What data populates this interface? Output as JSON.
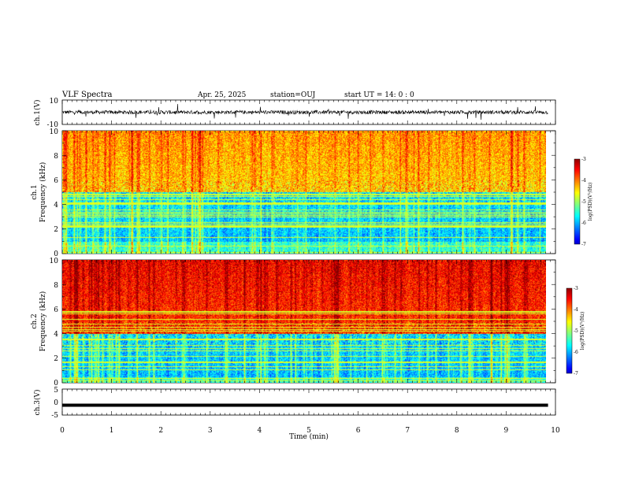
{
  "header": {
    "title": "VLF Spectra",
    "date": "Apr. 25, 2025",
    "station": "station=OUJ",
    "start": "start  UT =   14: 0  : 0"
  },
  "chart_data": [
    {
      "type": "line",
      "name": "ch1-waveform",
      "ylabel": "ch.1(V)",
      "ylim": [
        -10,
        10
      ],
      "yticks": [
        "10",
        "-10"
      ],
      "baseline": 0,
      "color": "#000000"
    },
    {
      "type": "heatmap",
      "name": "ch1-spectrogram",
      "ylabel_top": "ch.1",
      "ylabel": "Frequency (kHz)",
      "ylim": [
        0,
        10
      ],
      "yticks": [
        "0",
        "2",
        "4",
        "6",
        "8",
        "10"
      ],
      "colorbar": {
        "range": [
          -7,
          -3
        ],
        "ticks": [
          "-3",
          "-4",
          "-5",
          "-6",
          "-7"
        ],
        "label": "log(PSD)(V²/Hz)"
      },
      "profile": {
        "dark_band_khz": [
          1,
          5
        ],
        "upper_level": -4.3
      }
    },
    {
      "type": "heatmap",
      "name": "ch2-spectrogram",
      "ylabel_top": "ch.2",
      "ylabel": "Frequency (kHz)",
      "ylim": [
        0,
        10
      ],
      "yticks": [
        "0",
        "2",
        "4",
        "6",
        "8",
        "10"
      ],
      "colorbar": {
        "range": [
          -7,
          -3
        ],
        "ticks": [
          "-3",
          "-4",
          "-5",
          "-6",
          "-7"
        ],
        "label": "log(PSD)(V²/Hz)"
      },
      "profile": {
        "dark_band_khz": [
          0.5,
          4
        ],
        "upper_level": -3.6
      }
    },
    {
      "type": "line",
      "name": "ch3-waveform",
      "ylabel": "ch.3(V)",
      "ylim": [
        -5,
        5
      ],
      "yticks": [
        "5",
        "0",
        "-5"
      ],
      "baseline": -1.2,
      "color": "#000000"
    }
  ],
  "xaxis": {
    "label": "Time (min)",
    "xlim": [
      0,
      10
    ],
    "ticks": [
      "0",
      "1",
      "2",
      "3",
      "4",
      "5",
      "6",
      "7",
      "8",
      "9",
      "10"
    ],
    "data_end_min": 9.85
  }
}
